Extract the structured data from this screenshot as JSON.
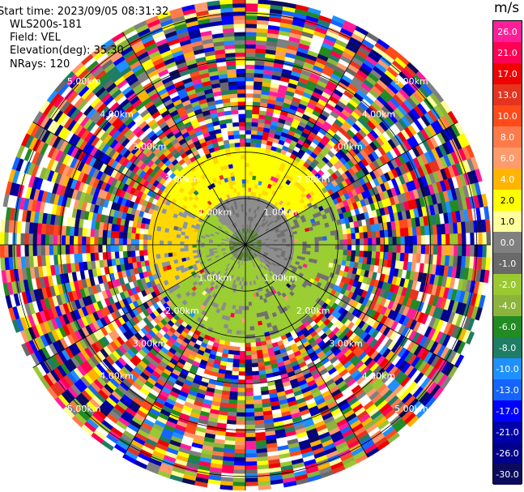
{
  "header": {
    "start_time": "Start time: 2023/09/05 08:31:32",
    "device": "WLS200s-181",
    "field": "Field: VEL",
    "elevation": "Elevation(deg): 35.30",
    "nrays": "NRays: 120"
  },
  "chart_data": {
    "type": "heatmap",
    "projection": "polar-ppi",
    "grid": true,
    "range_ring_labels_km": [
      "1.00km",
      "2.00km",
      "3.00km",
      "4.00km",
      "5.00km"
    ],
    "ring_label_directions": [
      "NW",
      "NE",
      "SW",
      "SE"
    ],
    "n_rays": 120,
    "colorbar": {
      "unit": "m/s",
      "ticks": [
        "26.0",
        "21.0",
        "17.0",
        "13.0",
        "10.0",
        "8.0",
        "6.0",
        "4.0",
        "2.0",
        "1.0",
        "0.0",
        "-1.0",
        "-2.0",
        "-4.0",
        "-6.0",
        "-8.0",
        "-10.0",
        "-13.0",
        "-17.0",
        "-21.0",
        "-26.0",
        "-30.0"
      ],
      "colors": [
        "#ff1e9a",
        "#ff0055",
        "#f00000",
        "#e63320",
        "#ff4a1a",
        "#ff7a4a",
        "#ff9a6a",
        "#ffb400",
        "#ffff00",
        "#ffff9c",
        "#808080",
        "#696969",
        "#9ac832",
        "#8cb43c",
        "#228b22",
        "#1e7d64",
        "#1e90ff",
        "#1464ff",
        "#0000ff",
        "#0000aa",
        "#00008b",
        "#0b0b5e"
      ]
    },
    "pattern_colors": {
      "near_gray": "#8c8c8c",
      "near_blue_gray": "#8895a5",
      "near_dark_gray": "#707070",
      "green_dark": "#4b7e1f",
      "yellow": "#ffff00",
      "gold": "#ffd700",
      "light_green": "#9acd32"
    }
  }
}
